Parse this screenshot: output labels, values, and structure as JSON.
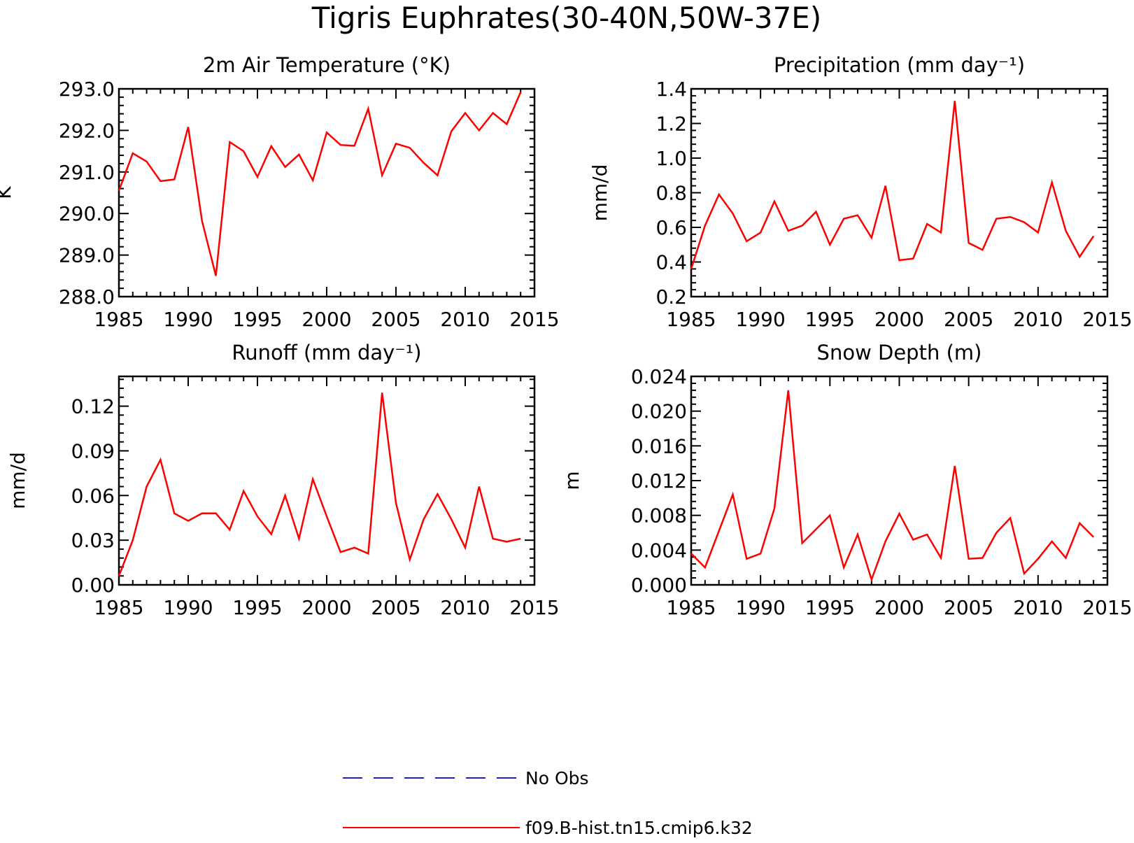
{
  "figure": {
    "title": "Tigris Euphrates(30-40N,50W-37E)"
  },
  "legend": {
    "items": [
      {
        "label": "No Obs",
        "color": "#2020d0",
        "style": "dashed"
      },
      {
        "label": "f09.B-hist.tn15.cmip6.k32",
        "color": "#ff0000",
        "style": "solid"
      }
    ]
  },
  "chart_data": [
    {
      "type": "line",
      "title": "2m Air Temperature (°K)",
      "ylabel": "K",
      "xlim": [
        1985,
        2015
      ],
      "ylim": [
        288.0,
        293.0
      ],
      "xticks": [
        1985,
        1990,
        1995,
        2000,
        2005,
        2010,
        2015
      ],
      "xtick_labels": [
        "1985",
        "1990",
        "1995",
        "2000",
        "2005",
        "2010",
        "2015"
      ],
      "yticks": [
        288.0,
        289.0,
        290.0,
        291.0,
        292.0,
        293.0
      ],
      "ytick_labels": [
        "288.0",
        "289.0",
        "290.0",
        "291.0",
        "292.0",
        "293.0"
      ],
      "x": [
        1985,
        1986,
        1987,
        1988,
        1989,
        1990,
        1991,
        1992,
        1993,
        1994,
        1995,
        1996,
        1997,
        1998,
        1999,
        2000,
        2001,
        2002,
        2003,
        2004,
        2005,
        2006,
        2007,
        2008,
        2009,
        2010,
        2011,
        2012,
        2013,
        2014
      ],
      "series": [
        {
          "name": "f09.B-hist.tn15.cmip6.k32",
          "color": "#ff0000",
          "values": [
            290.55,
            291.45,
            291.25,
            290.78,
            290.82,
            292.08,
            289.82,
            288.5,
            291.72,
            291.5,
            290.88,
            291.62,
            291.12,
            291.42,
            290.8,
            291.95,
            291.65,
            291.63,
            292.52,
            290.92,
            291.68,
            291.58,
            291.22,
            290.92,
            291.98,
            292.42,
            292.0,
            292.42,
            292.15,
            292.92
          ]
        }
      ]
    },
    {
      "type": "line",
      "title": "Precipitation (mm day⁻¹)",
      "ylabel": "mm/d",
      "xlim": [
        1985,
        2015
      ],
      "ylim": [
        0.2,
        1.4
      ],
      "xticks": [
        1985,
        1990,
        1995,
        2000,
        2005,
        2010,
        2015
      ],
      "xtick_labels": [
        "1985",
        "1990",
        "1995",
        "2000",
        "2005",
        "2010",
        "2015"
      ],
      "yticks": [
        0.2,
        0.4,
        0.6,
        0.8,
        1.0,
        1.2,
        1.4
      ],
      "ytick_labels": [
        "0.2",
        "0.4",
        "0.6",
        "0.8",
        "1.0",
        "1.2",
        "1.4"
      ],
      "x": [
        1985,
        1986,
        1987,
        1988,
        1989,
        1990,
        1991,
        1992,
        1993,
        1994,
        1995,
        1996,
        1997,
        1998,
        1999,
        2000,
        2001,
        2002,
        2003,
        2004,
        2005,
        2006,
        2007,
        2008,
        2009,
        2010,
        2011,
        2012,
        2013,
        2014
      ],
      "series": [
        {
          "name": "f09.B-hist.tn15.cmip6.k32",
          "color": "#ff0000",
          "values": [
            0.36,
            0.61,
            0.79,
            0.68,
            0.52,
            0.57,
            0.75,
            0.58,
            0.61,
            0.69,
            0.5,
            0.65,
            0.67,
            0.54,
            0.84,
            0.41,
            0.42,
            0.62,
            0.57,
            1.33,
            0.51,
            0.47,
            0.65,
            0.66,
            0.63,
            0.57,
            0.86,
            0.58,
            0.43,
            0.55
          ]
        }
      ]
    },
    {
      "type": "line",
      "title": "Runoff (mm day⁻¹)",
      "ylabel": "mm/d",
      "xlim": [
        1985,
        2015
      ],
      "ylim": [
        0.0,
        0.14
      ],
      "xticks": [
        1985,
        1990,
        1995,
        2000,
        2005,
        2010,
        2015
      ],
      "xtick_labels": [
        "1985",
        "1990",
        "1995",
        "2000",
        "2005",
        "2010",
        "2015"
      ],
      "yticks": [
        0.0,
        0.03,
        0.06,
        0.09,
        0.12
      ],
      "ytick_labels": [
        "0.00",
        "0.03",
        "0.06",
        "0.09",
        "0.12"
      ],
      "x": [
        1985,
        1986,
        1987,
        1988,
        1989,
        1990,
        1991,
        1992,
        1993,
        1994,
        1995,
        1996,
        1997,
        1998,
        1999,
        2000,
        2001,
        2002,
        2003,
        2004,
        2005,
        2006,
        2007,
        2008,
        2009,
        2010,
        2011,
        2012,
        2013,
        2014
      ],
      "series": [
        {
          "name": "f09.B-hist.tn15.cmip6.k32",
          "color": "#ff0000",
          "values": [
            0.006,
            0.03,
            0.066,
            0.084,
            0.048,
            0.043,
            0.048,
            0.048,
            0.037,
            0.063,
            0.046,
            0.034,
            0.06,
            0.031,
            0.071,
            0.046,
            0.022,
            0.025,
            0.021,
            0.129,
            0.055,
            0.017,
            0.044,
            0.061,
            0.044,
            0.025,
            0.066,
            0.031,
            0.029,
            0.031
          ]
        }
      ]
    },
    {
      "type": "line",
      "title": "Snow Depth (m)",
      "ylabel": "m",
      "xlim": [
        1985,
        2015
      ],
      "ylim": [
        0.0,
        0.024
      ],
      "xticks": [
        1985,
        1990,
        1995,
        2000,
        2005,
        2010,
        2015
      ],
      "xtick_labels": [
        "1985",
        "1990",
        "1995",
        "2000",
        "2005",
        "2010",
        "2015"
      ],
      "yticks": [
        0.0,
        0.004,
        0.008,
        0.012,
        0.016,
        0.02,
        0.024
      ],
      "ytick_labels": [
        "0.000",
        "0.004",
        "0.008",
        "0.012",
        "0.016",
        "0.020",
        "0.024"
      ],
      "x": [
        1985,
        1986,
        1987,
        1988,
        1989,
        1990,
        1991,
        1992,
        1993,
        1994,
        1995,
        1996,
        1997,
        1998,
        1999,
        2000,
        2001,
        2002,
        2003,
        2004,
        2005,
        2006,
        2007,
        2008,
        2009,
        2010,
        2011,
        2012,
        2013,
        2014
      ],
      "series": [
        {
          "name": "f09.B-hist.tn15.cmip6.k32",
          "color": "#ff0000",
          "values": [
            0.0036,
            0.002,
            0.0062,
            0.0104,
            0.003,
            0.0036,
            0.0088,
            0.0224,
            0.0048,
            0.0064,
            0.008,
            0.002,
            0.0058,
            0.0006,
            0.005,
            0.0082,
            0.0052,
            0.0058,
            0.0031,
            0.0137,
            0.003,
            0.0031,
            0.006,
            0.0077,
            0.0013,
            0.003,
            0.005,
            0.0031,
            0.0071,
            0.0055
          ]
        }
      ]
    }
  ]
}
